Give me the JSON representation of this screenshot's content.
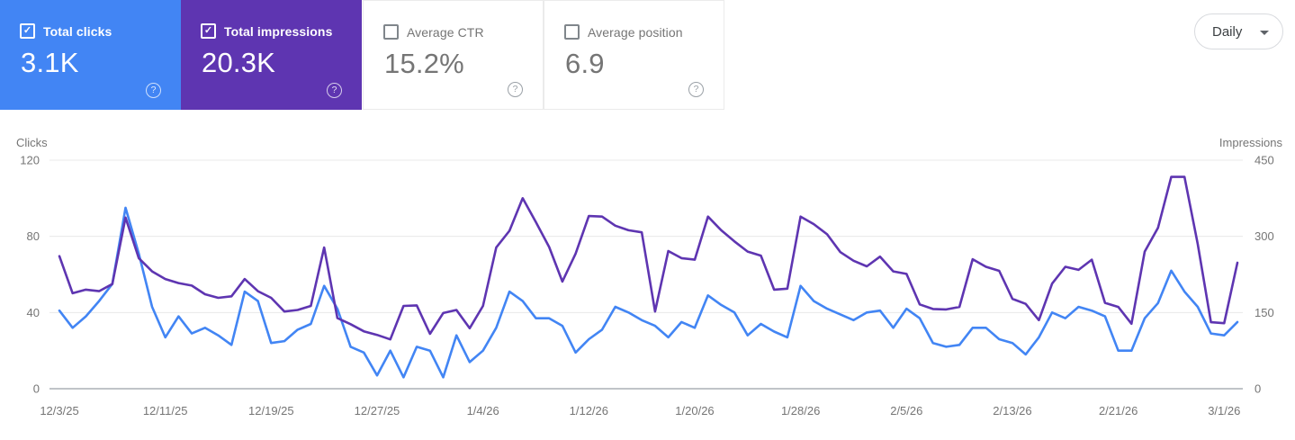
{
  "metric_cards": [
    {
      "id": "total-clicks",
      "label": "Total clicks",
      "value": "3.1K",
      "checked": true,
      "bg": "#4285f4"
    },
    {
      "id": "total-impressions",
      "label": "Total impressions",
      "value": "20.3K",
      "checked": true,
      "bg": "#5e35b1"
    },
    {
      "id": "average-ctr",
      "label": "Average CTR",
      "value": "15.2%",
      "checked": false,
      "bg": "#ffffff"
    },
    {
      "id": "average-position",
      "label": "Average position",
      "value": "6.9",
      "checked": false,
      "bg": "#ffffff"
    }
  ],
  "controls": {
    "granularity_label": "Daily"
  },
  "icons": {
    "help": "?",
    "checkbox_check": "✓",
    "chevron": "chevron-down-icon"
  },
  "colors": {
    "clicks_accent": "#4285f4",
    "impressions_accent": "#5e35b1",
    "grid": "#e8e8e8",
    "axis_line": "#9aa0a6",
    "tick_text": "#757575"
  },
  "chart_data": {
    "type": "line",
    "title": "",
    "grid": true,
    "legend_position": "none",
    "left_axis": {
      "label": "Clicks",
      "max": 120,
      "ticks": [
        0,
        40,
        80,
        120
      ]
    },
    "right_axis": {
      "label": "Impressions",
      "max": 450,
      "ticks": [
        0,
        150,
        300,
        450
      ]
    },
    "x_ticks": [
      {
        "index": 0,
        "label": "12/3/25"
      },
      {
        "index": 8,
        "label": "12/11/25"
      },
      {
        "index": 16,
        "label": "12/19/25"
      },
      {
        "index": 24,
        "label": "12/27/25"
      },
      {
        "index": 32,
        "label": "1/4/26"
      },
      {
        "index": 40,
        "label": "1/12/26"
      },
      {
        "index": 48,
        "label": "1/20/26"
      },
      {
        "index": 56,
        "label": "1/28/26"
      },
      {
        "index": 64,
        "label": "2/5/26"
      },
      {
        "index": 72,
        "label": "2/13/26"
      },
      {
        "index": 80,
        "label": "2/21/26"
      },
      {
        "index": 88,
        "label": "3/1/26"
      }
    ],
    "x": [
      "12/3/25",
      "12/4/25",
      "12/5/25",
      "12/6/25",
      "12/7/25",
      "12/8/25",
      "12/9/25",
      "12/10/25",
      "12/11/25",
      "12/12/25",
      "12/13/25",
      "12/14/25",
      "12/15/25",
      "12/16/25",
      "12/17/25",
      "12/18/25",
      "12/19/25",
      "12/20/25",
      "12/21/25",
      "12/22/25",
      "12/23/25",
      "12/24/25",
      "12/25/25",
      "12/26/25",
      "12/27/25",
      "12/28/25",
      "12/29/25",
      "12/30/25",
      "12/31/25",
      "1/1/26",
      "1/2/26",
      "1/3/26",
      "1/4/26",
      "1/5/26",
      "1/6/26",
      "1/7/26",
      "1/8/26",
      "1/9/26",
      "1/10/26",
      "1/11/26",
      "1/12/26",
      "1/13/26",
      "1/14/26",
      "1/15/26",
      "1/16/26",
      "1/17/26",
      "1/18/26",
      "1/19/26",
      "1/20/26",
      "1/21/26",
      "1/22/26",
      "1/23/26",
      "1/24/26",
      "1/25/26",
      "1/26/26",
      "1/27/26",
      "1/28/26",
      "1/29/26",
      "1/30/26",
      "1/31/26",
      "2/1/26",
      "2/2/26",
      "2/3/26",
      "2/4/26",
      "2/5/26",
      "2/6/26",
      "2/7/26",
      "2/8/26",
      "2/9/26",
      "2/10/26",
      "2/11/26",
      "2/12/26",
      "2/13/26",
      "2/14/26",
      "2/15/26",
      "2/16/26",
      "2/17/26",
      "2/18/26",
      "2/19/26",
      "2/20/26",
      "2/21/26",
      "2/22/26",
      "2/23/26",
      "2/24/26",
      "2/25/26",
      "2/26/26",
      "2/27/26",
      "2/28/26",
      "3/1/26",
      "3/2/26"
    ],
    "series": [
      {
        "name": "Clicks",
        "axis": "left",
        "color": "#4285f4",
        "values": [
          41,
          32,
          38,
          46,
          55,
          95,
          71,
          43,
          27,
          38,
          29,
          32,
          28,
          23,
          51,
          46,
          24,
          25,
          31,
          34,
          54,
          42,
          22,
          19,
          7,
          20,
          6,
          22,
          20,
          6,
          28,
          14,
          20,
          32,
          51,
          46,
          37,
          37,
          33,
          19,
          26,
          31,
          43,
          40,
          36,
          33,
          27,
          35,
          32,
          49,
          44,
          40,
          28,
          34,
          30,
          27,
          54,
          46,
          42,
          39,
          36,
          40,
          41,
          32,
          42,
          37,
          24,
          22,
          23,
          32,
          32,
          26,
          24,
          18,
          27,
          40,
          37,
          43,
          41,
          38,
          20,
          20,
          37,
          45,
          62,
          51,
          43,
          29,
          28,
          35
        ]
      },
      {
        "name": "Impressions",
        "axis": "right",
        "color": "#5e35b1",
        "values": [
          261,
          188,
          195,
          192,
          206,
          337,
          257,
          231,
          216,
          208,
          203,
          186,
          179,
          182,
          216,
          192,
          179,
          152,
          155,
          163,
          278,
          139,
          127,
          113,
          106,
          97,
          163,
          164,
          108,
          149,
          155,
          119,
          163,
          278,
          311,
          375,
          328,
          279,
          211,
          266,
          340,
          339,
          321,
          312,
          308,
          152,
          271,
          257,
          254,
          339,
          312,
          290,
          270,
          262,
          195,
          197,
          339,
          324,
          304,
          269,
          252,
          241,
          260,
          231,
          226,
          166,
          157,
          156,
          161,
          255,
          240,
          232,
          177,
          167,
          135,
          207,
          240,
          234,
          254,
          169,
          161,
          128,
          270,
          317,
          417,
          417,
          285,
          131,
          129,
          248
        ]
      }
    ]
  }
}
